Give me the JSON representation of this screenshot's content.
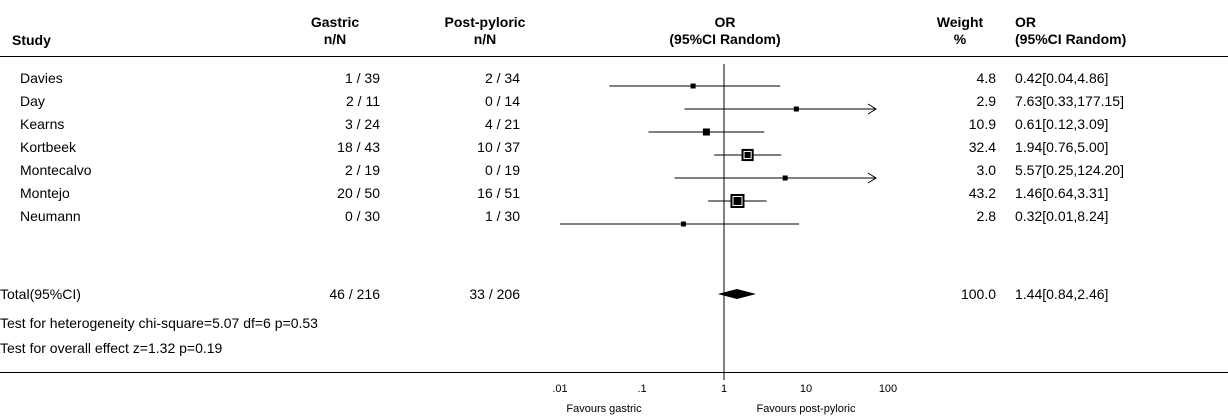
{
  "chart_data": {
    "type": "forest",
    "headers": {
      "study": "Study",
      "gastric": [
        "Gastric",
        "n/N"
      ],
      "postpyloric": [
        "Post-pyloric",
        "n/N"
      ],
      "or_plot": [
        "OR",
        "(95%CI Random)"
      ],
      "weight": [
        "Weight",
        "%"
      ],
      "or_text": [
        "OR",
        "(95%CI Random)"
      ]
    },
    "studies": [
      {
        "name": "Davies",
        "gastric": "1 / 39",
        "postpyloric": "2 / 34",
        "or": 0.42,
        "lo": 0.04,
        "hi": 4.86,
        "weight": "4.8",
        "ci_text": "0.42[0.04,4.86]"
      },
      {
        "name": "Day",
        "gastric": "2 / 11",
        "postpyloric": "0 / 14",
        "or": 7.63,
        "lo": 0.33,
        "hi": 177.15,
        "weight": "2.9",
        "ci_text": "7.63[0.33,177.15]"
      },
      {
        "name": "Kearns",
        "gastric": "3 / 24",
        "postpyloric": "4 / 21",
        "or": 0.61,
        "lo": 0.12,
        "hi": 3.09,
        "weight": "10.9",
        "ci_text": "0.61[0.12,3.09]"
      },
      {
        "name": "Kortbeek",
        "gastric": "18 / 43",
        "postpyloric": "10 / 37",
        "or": 1.94,
        "lo": 0.76,
        "hi": 5.0,
        "weight": "32.4",
        "ci_text": "1.94[0.76,5.00]"
      },
      {
        "name": "Montecalvo",
        "gastric": "2 / 19",
        "postpyloric": "0 / 19",
        "or": 5.57,
        "lo": 0.25,
        "hi": 124.2,
        "weight": "3.0",
        "ci_text": "5.57[0.25,124.20]"
      },
      {
        "name": "Montejo",
        "gastric": "20 / 50",
        "postpyloric": "16 / 51",
        "or": 1.46,
        "lo": 0.64,
        "hi": 3.31,
        "weight": "43.2",
        "ci_text": "1.46[0.64,3.31]"
      },
      {
        "name": "Neumann",
        "gastric": "0 / 30",
        "postpyloric": "1 / 30",
        "or": 0.32,
        "lo": 0.01,
        "hi": 8.24,
        "weight": "2.8",
        "ci_text": "0.32[0.01,8.24]"
      }
    ],
    "total": {
      "name": "Total(95%CI)",
      "gastric": "46 / 216",
      "postpyloric": "33 / 206",
      "or": 1.44,
      "lo": 0.84,
      "hi": 2.46,
      "weight": "100.0",
      "ci_text": "1.44[0.84,2.46]"
    },
    "tests": [
      "Test for heterogeneity chi-square=5.07  df=6  p=0.53",
      "Test for overall effect  z=1.32  p=0.19"
    ],
    "x_axis": {
      "scale": "log",
      "ticks": [
        {
          "value": 0.01,
          "label": ".01"
        },
        {
          "value": 0.1,
          "label": ".1"
        },
        {
          "value": 1,
          "label": "1"
        },
        {
          "value": 10,
          "label": "10"
        },
        {
          "value": 100,
          "label": "100"
        }
      ],
      "xlim": [
        0.01,
        100
      ],
      "left_label": "Favours gastric",
      "right_label": "Favours post-pyloric"
    }
  }
}
